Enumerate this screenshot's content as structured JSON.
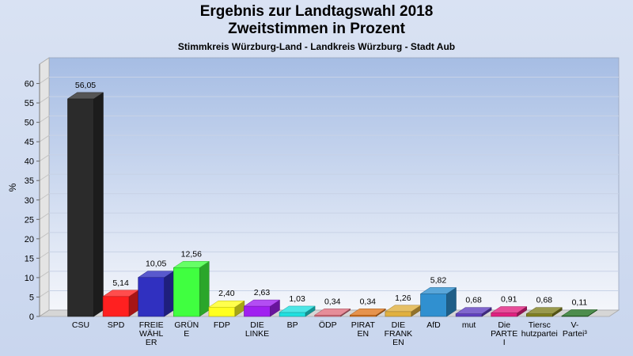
{
  "title_line1": "Ergebnis zur Landtagswahl 2018",
  "title_line2": "Zweitstimmen in Prozent",
  "subtitle": "Stimmkreis Würzburg-Land - Landkreis Würzburg - Stadt Aub",
  "chart_data": {
    "type": "bar",
    "ylabel": "%",
    "ylim": [
      0,
      65
    ],
    "yticks": [
      0,
      5,
      10,
      15,
      20,
      25,
      30,
      35,
      40,
      45,
      50,
      55,
      60
    ],
    "grid": true,
    "categories": [
      [
        "CSU"
      ],
      [
        "SPD"
      ],
      [
        "FREIE",
        "WÄHL",
        "ER"
      ],
      [
        "GRÜN",
        "E"
      ],
      [
        "FDP"
      ],
      [
        "DIE",
        "LINKE"
      ],
      [
        "BP"
      ],
      [
        "ÖDP"
      ],
      [
        "PIRAT",
        "EN"
      ],
      [
        "DIE",
        "FRANK",
        "EN"
      ],
      [
        "AfD"
      ],
      [
        "mut"
      ],
      [
        "Die",
        "PARTE",
        "I"
      ],
      [
        "Tiersc",
        "hutzpartei"
      ],
      [
        "V-",
        "Partei³"
      ]
    ],
    "values": [
      56.05,
      5.14,
      10.05,
      12.56,
      2.4,
      2.63,
      1.03,
      0.34,
      0.34,
      1.26,
      5.82,
      0.68,
      0.91,
      0.68,
      0.11
    ],
    "labels": [
      "56,05",
      "5,14",
      "10,05",
      "12,56",
      "2,40",
      "2,63",
      "1,03",
      "0,34",
      "0,34",
      "1,26",
      "5,82",
      "0,68",
      "0,91",
      "0,68",
      "0,11"
    ],
    "colors": [
      "#2b2b2b",
      "#ff2020",
      "#3030c0",
      "#40ff40",
      "#ffff20",
      "#a020f0",
      "#20e0e0",
      "#e07080",
      "#e07820",
      "#e0b040",
      "#3090d0",
      "#6040c0",
      "#e02080",
      "#808020",
      "#207020"
    ]
  }
}
